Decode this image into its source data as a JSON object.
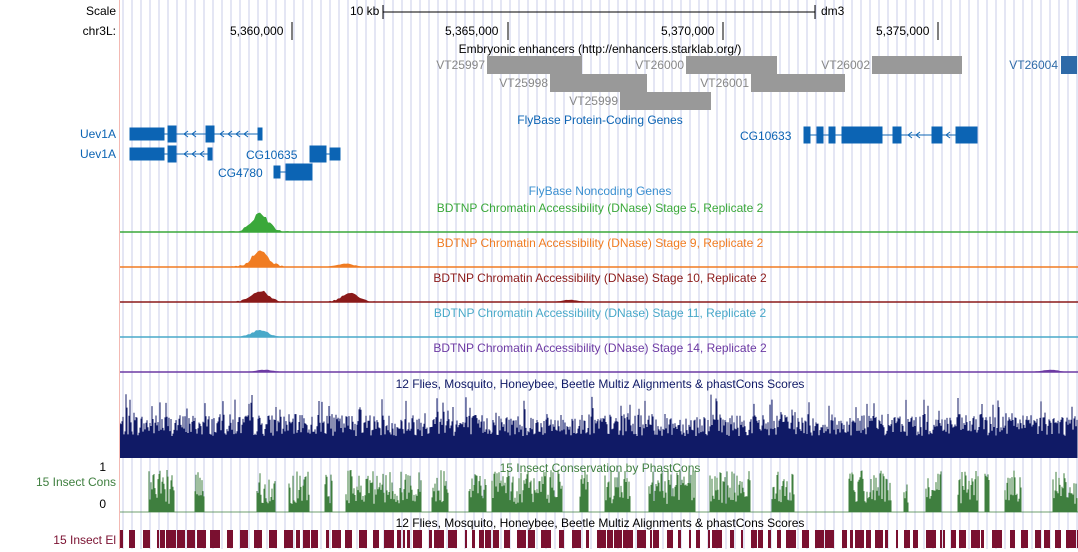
{
  "ruler": {
    "scale_label": "Scale",
    "chrom_label": "chr3L:",
    "scale_bar_label": "10 kb",
    "assembly": "dm3",
    "ticks": [
      "5,360,000",
      "5,365,000",
      "5,370,000",
      "5,375,000"
    ]
  },
  "side_labels": {
    "uev1a_1": "Uev1A",
    "uev1a_2": "Uev1A",
    "insect_cons": "15 Insect Cons",
    "insect_el": "15 Insect El",
    "cons_max": "1",
    "cons_min": "0"
  },
  "tracks": {
    "enhancers_title": "Embryonic enhancers (http://enhancers.starklab.org/)",
    "flybase_coding_title": "FlyBase Protein-Coding Genes",
    "flybase_noncoding_title": "FlyBase Noncoding Genes",
    "dnase_stage5_title": "BDTNP Chromatin Accessibility (DNase) Stage 5, Replicate 2",
    "dnase_stage9_title": "BDTNP Chromatin Accessibility (DNase) Stage 9, Replicate 2",
    "dnase_stage10_title": "BDTNP Chromatin Accessibility (DNase) Stage 10, Replicate 2",
    "dnase_stage11_title": "BDTNP Chromatin Accessibility (DNase) Stage 11, Replicate 2",
    "dnase_stage14_title": "BDTNP Chromatin Accessibility (DNase) Stage 14, Replicate 2",
    "multiz_title": "12 Flies, Mosquito, Honeybee, Beetle Multiz Alignments & phastCons Scores",
    "phastcons_title": "15 Insect Conservation by PhastCons",
    "multiz_el_title": "12 Flies, Mosquito, Honeybee, Beetle Multiz Alignments & phastCons Scores"
  },
  "enhancers": [
    "VT25997",
    "VT26000",
    "VT26002",
    "VT26004",
    "VT25998",
    "VT26001",
    "VT25999"
  ],
  "genes": [
    "CG10635",
    "CG4780",
    "CG10633"
  ],
  "colors": {
    "enhancer": "#999999",
    "enhancer_label": "#888888",
    "gene": "#0c64b4",
    "gene_label": "#0c64b4",
    "noncoding": "#3a8fd0",
    "stage5": "#3aa83a",
    "stage9": "#f07c22",
    "stage10": "#8b1a1a",
    "stage11": "#49a9c9",
    "stage14": "#6d3aa3",
    "multiz": "#101a66",
    "phastcons": "#3f7f3f",
    "conserved_el": "#7a1030",
    "grid": "#c8cdea"
  }
}
